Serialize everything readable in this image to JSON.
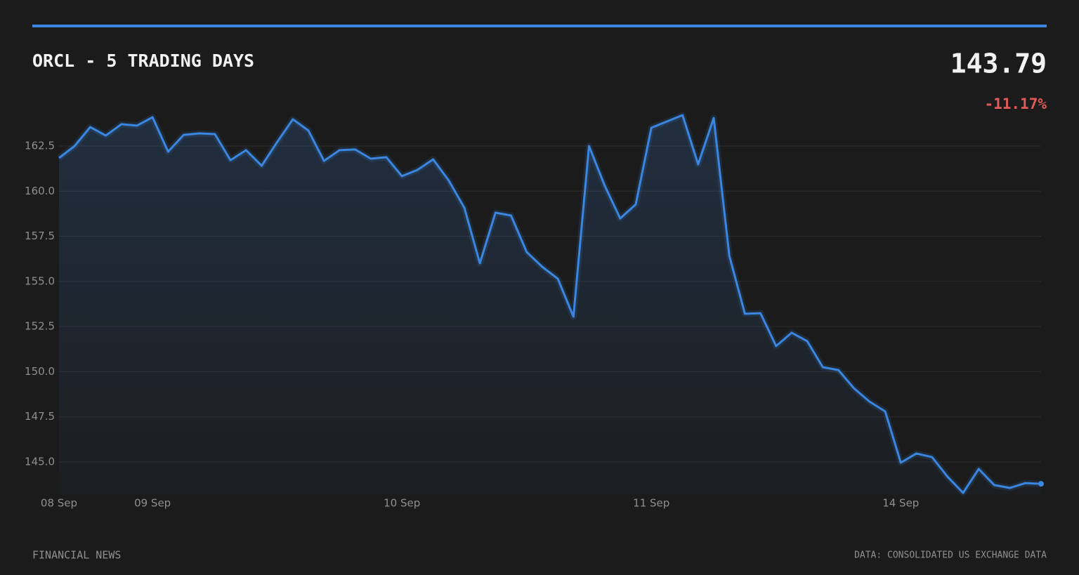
{
  "chart_data": {
    "type": "line",
    "title": "ORCL - 5 TRADING DAYS",
    "last_price": "143.79",
    "change": "-11.17%",
    "source_left": "FINANCIAL NEWS",
    "source_right": "DATA: CONSOLIDATED US EXCHANGE DATA",
    "categories": [
      "08 Sep",
      null,
      null,
      null,
      null,
      null,
      "09 Sep",
      null,
      null,
      null,
      null,
      null,
      null,
      null,
      null,
      null,
      null,
      null,
      null,
      null,
      null,
      null,
      "10 Sep",
      null,
      null,
      null,
      null,
      null,
      null,
      null,
      null,
      null,
      null,
      null,
      null,
      null,
      null,
      null,
      "11 Sep",
      null,
      null,
      null,
      null,
      null,
      null,
      null,
      null,
      null,
      null,
      null,
      null,
      null,
      null,
      null,
      "14 Sep",
      null,
      null,
      null,
      null,
      null,
      null,
      null,
      null,
      null
    ],
    "series": [
      {
        "name": "ORCL",
        "color": "#3a86e0",
        "values": [
          161.84,
          162.5,
          163.55,
          163.08,
          163.71,
          163.63,
          164.1,
          162.19,
          163.12,
          163.2,
          163.16,
          161.72,
          162.27,
          161.41,
          162.73,
          163.98,
          163.36,
          161.68,
          162.27,
          162.31,
          161.8,
          161.88,
          160.83,
          161.18,
          161.76,
          160.59,
          159.08,
          156.01,
          158.81,
          158.65,
          156.63,
          155.81,
          155.15,
          153.05,
          162.5,
          160.32,
          158.49,
          159.27,
          163.51,
          163.86,
          164.21,
          161.49,
          164.05,
          156.43,
          153.21,
          153.24,
          151.42,
          152.16,
          151.69,
          150.25,
          150.09,
          149.08,
          148.34,
          147.8,
          144.96,
          145.47,
          145.27,
          144.18,
          143.29,
          144.61,
          143.72,
          143.56,
          143.83,
          143.79
        ]
      }
    ],
    "ylim": [
      143.2,
      165.0
    ],
    "yticks": [
      {
        "value": 145,
        "label": "145.0"
      },
      {
        "value": 147.5,
        "label": "147.5"
      },
      {
        "value": 150,
        "label": "150.0"
      },
      {
        "value": 152.5,
        "label": "152.5"
      },
      {
        "value": 155,
        "label": "155.0"
      },
      {
        "value": 157.5,
        "label": "157.5"
      },
      {
        "value": 160,
        "label": "160.0"
      },
      {
        "value": 162.5,
        "label": "162.5"
      }
    ],
    "grid": true
  }
}
